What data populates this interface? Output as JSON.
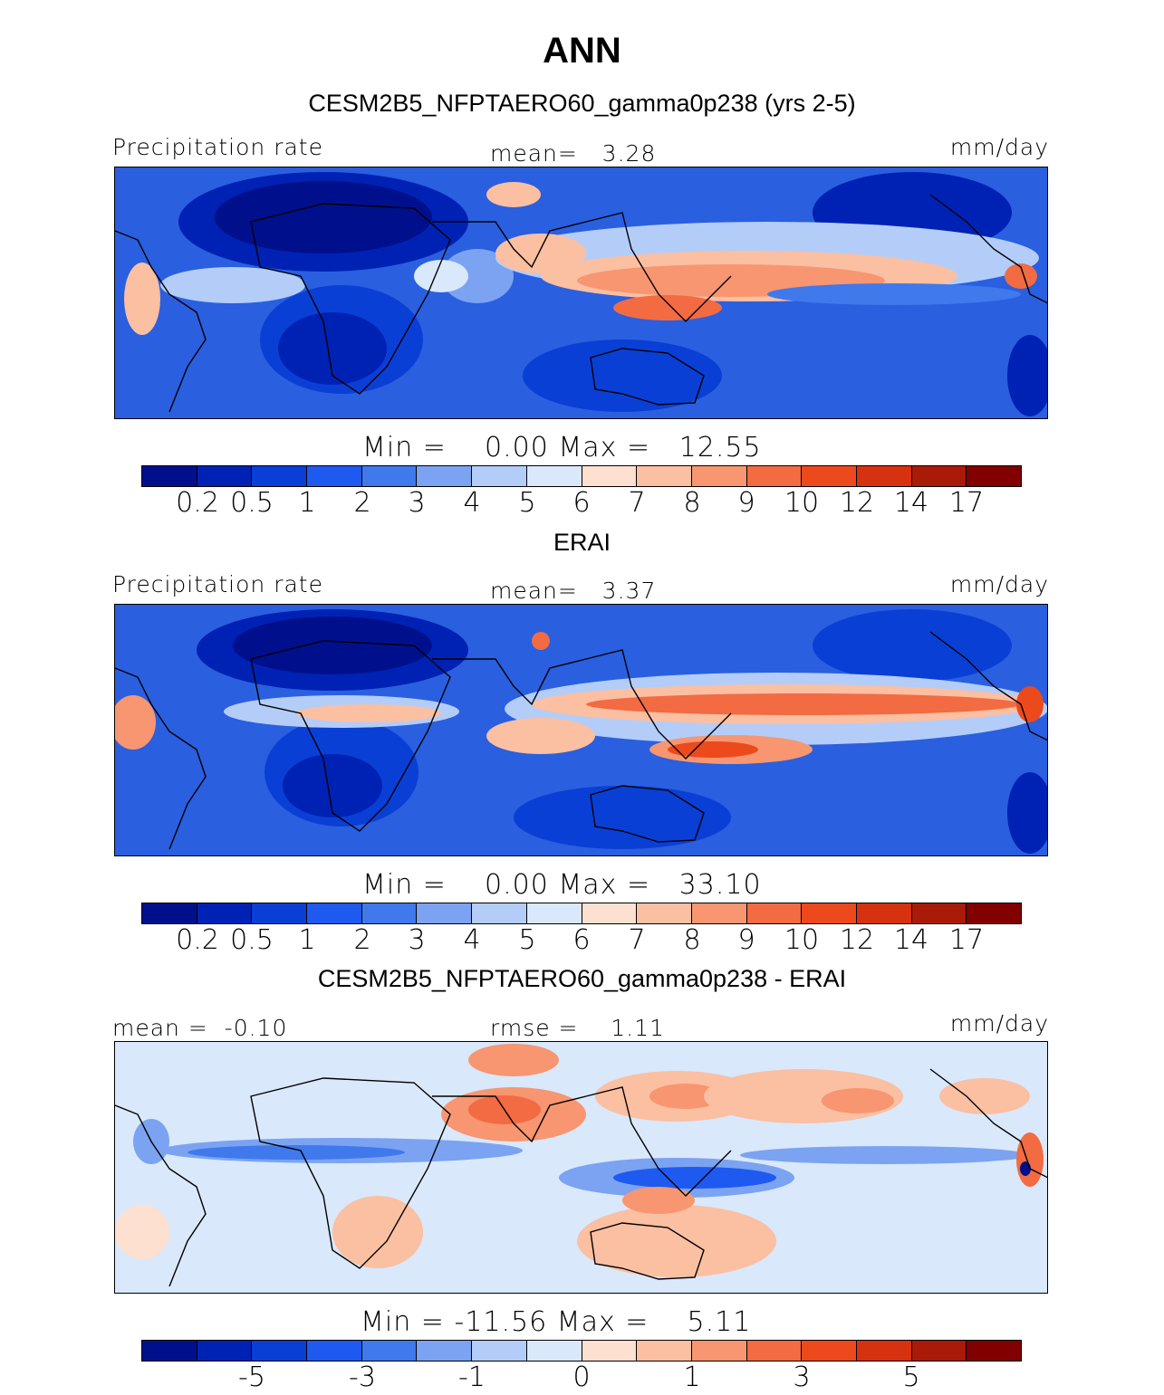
{
  "figure": {
    "title": "ANN"
  },
  "panels": [
    {
      "subtitle": "CESM2B5_NFPTAERO60_gamma0p238 (yrs 2-5)",
      "left_label": "Precipitation rate",
      "center_label": "mean=   3.28",
      "right_label": "mm/day",
      "minmax": "Min =    0.00 Max =   12.55",
      "ticks": [
        "0.2",
        "0.5",
        "1",
        "2",
        "3",
        "4",
        "5",
        "6",
        "7",
        "8",
        "9",
        "10",
        "12",
        "14",
        "17"
      ],
      "field": "absolute"
    },
    {
      "subtitle": "ERAI",
      "left_label": "Precipitation rate",
      "center_label": "mean=   3.37",
      "right_label": "mm/day",
      "minmax": "Min =    0.00 Max =   33.10",
      "ticks": [
        "0.2",
        "0.5",
        "1",
        "2",
        "3",
        "4",
        "5",
        "6",
        "7",
        "8",
        "9",
        "10",
        "12",
        "14",
        "17"
      ],
      "field": "absolute"
    },
    {
      "subtitle": "CESM2B5_NFPTAERO60_gamma0p238 - ERAI",
      "left_label": "mean =  -0.10",
      "center_label": "rmse =    1.11",
      "right_label": "mm/day",
      "minmax": "Min = -11.56 Max =    5.11",
      "ticks": [
        "-5",
        "-3",
        "-1",
        "0",
        "1",
        "3",
        "5"
      ],
      "field": "difference"
    }
  ],
  "colormap": [
    "#00108c",
    "#0022b4",
    "#0a3fd6",
    "#1e5af0",
    "#3f79ec",
    "#7ba3f2",
    "#b3cdf8",
    "#d9e8fb",
    "#fde0cf",
    "#fbbfa2",
    "#f79670",
    "#f26b42",
    "#ec4a1c",
    "#d63210",
    "#aa1a08",
    "#820000"
  ]
}
